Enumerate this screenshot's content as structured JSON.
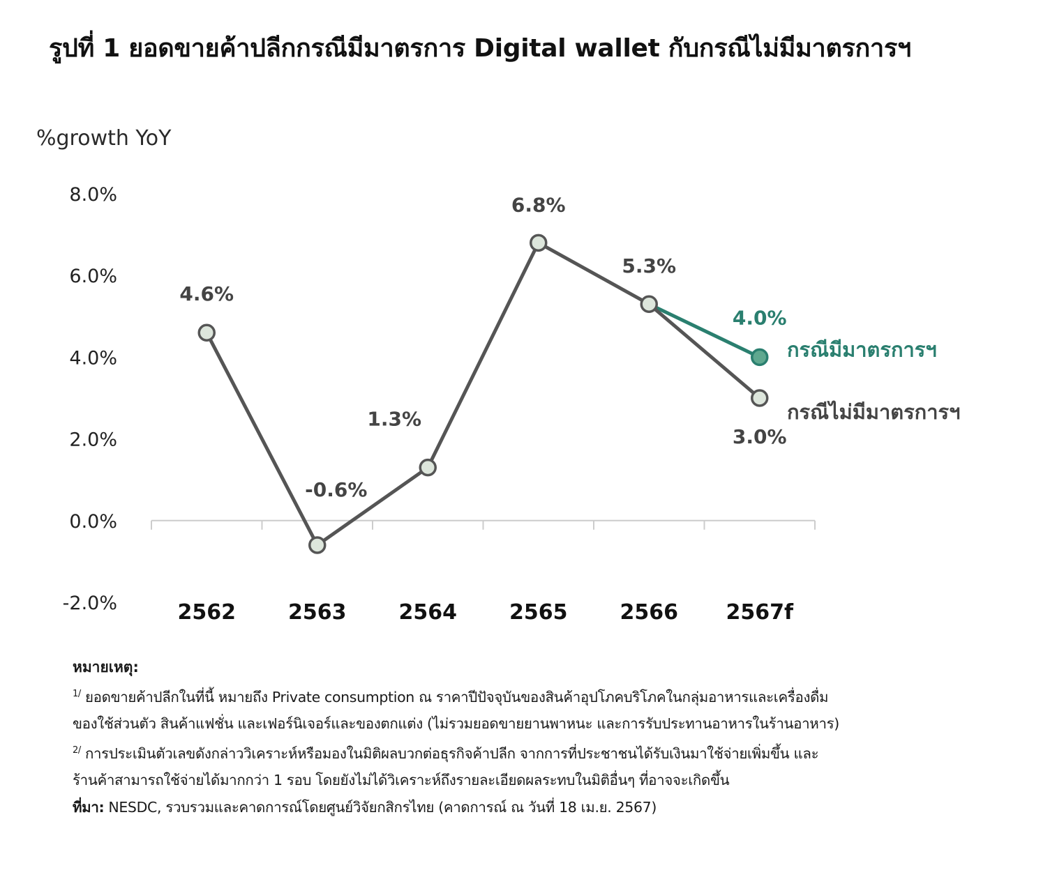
{
  "title": "รูปที่ 1 ยอดขายค้าปลีกกรณีมีมาตรการ Digital wallet กับกรณีไม่มีมาตรการฯ",
  "colors": {
    "baseline_series": "#555555",
    "policy_series": "#2a7f6f",
    "marker_fill": "#dde6dc",
    "axis": "#cccccc"
  },
  "chart_data": {
    "type": "line",
    "ylabel": "%growth YoY",
    "ylim": [
      -2.0,
      8.0
    ],
    "yticks": [
      "8.0%",
      "6.0%",
      "4.0%",
      "2.0%",
      "0.0%",
      "-2.0%"
    ],
    "ytick_values": [
      8,
      6,
      4,
      2,
      0,
      -2
    ],
    "categories": [
      "2562",
      "2563",
      "2564",
      "2565",
      "2566",
      "2567f"
    ],
    "grid": false,
    "series": [
      {
        "name": "กรณีไม่มีมาตรการฯ",
        "x": [
          "2562",
          "2563",
          "2564",
          "2565",
          "2566",
          "2567f"
        ],
        "values": [
          4.6,
          -0.6,
          1.3,
          6.8,
          5.3,
          3.0
        ],
        "labels": [
          "4.6%",
          "-0.6%",
          "1.3%",
          "6.8%",
          "5.3%",
          "3.0%"
        ]
      },
      {
        "name": "กรณีมีมาตรการฯ",
        "x": [
          "2566",
          "2567f"
        ],
        "values": [
          5.3,
          4.0
        ],
        "labels": [
          "",
          "4.0%"
        ]
      }
    ]
  },
  "notes": {
    "heading": "หมายเหตุ:",
    "note1_marker": "1/",
    "note1_line1": "ยอดขายค้าปลีกในที่นี้ หมายถึง Private consumption ณ ราคาปีปัจจุบันของสินค้าอุปโภคบริโภคในกลุ่มอาหารและเครื่องดื่ม",
    "note1_line2": "ของใช้ส่วนตัว สินค้าแฟชั่น และเฟอร์นิเจอร์และของตกแต่ง (ไม่รวมยอดขายยานพาหนะ และการรับประทานอาหารในร้านอาหาร)",
    "note2_marker": "2/",
    "note2_line1": "การประเมินตัวเลขดังกล่าววิเคราะห์หรือมองในมิติผลบวกต่อธุรกิจค้าปลีก จากการที่ประชาชนได้รับเงินมาใช้จ่ายเพิ่มขึ้น และ",
    "note2_line2": "ร้านค้าสามารถใช้จ่ายได้มากกว่า 1 รอบ โดยยังไม่ได้วิเคราะห์ถึงรายละเอียดผลระทบในมิติอื่นๆ ที่อาจจะเกิดขึ้น",
    "source_label": "ที่มา:",
    "source_text": "NESDC, รวบรวมและคาดการณ์โดยศูนย์วิจัยกสิกรไทย (คาดการณ์ ณ วันที่ 18 เม.ย. 2567)"
  }
}
